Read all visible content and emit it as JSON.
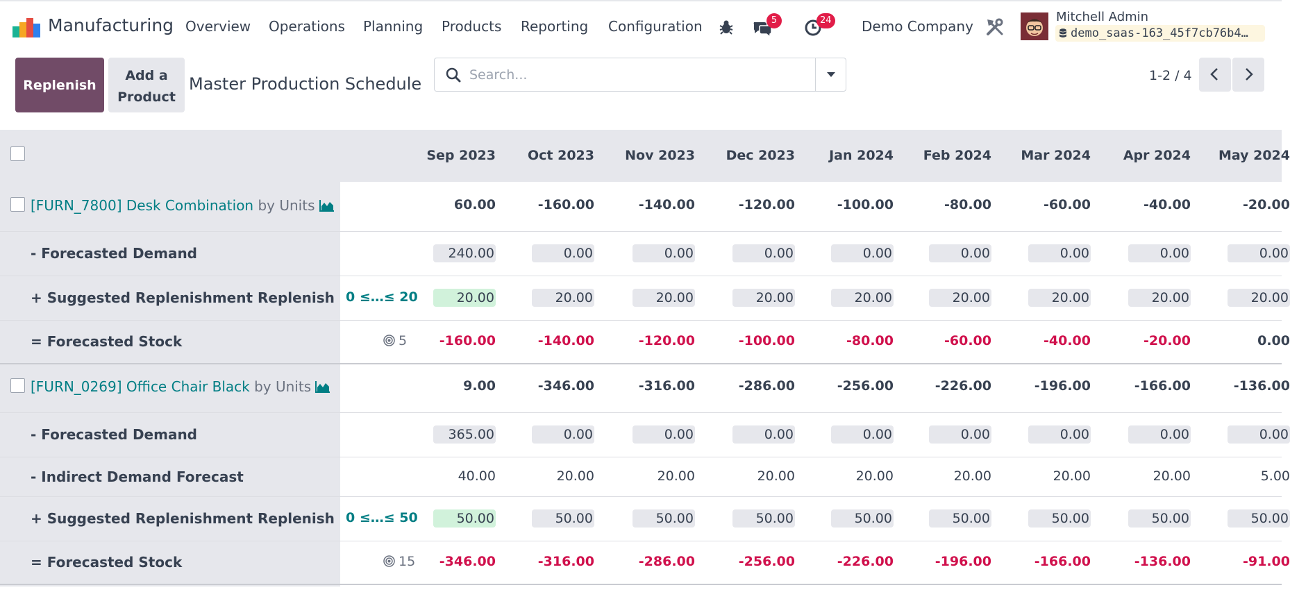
{
  "app": {
    "name": "Manufacturing"
  },
  "nav": {
    "items": [
      "Overview",
      "Operations",
      "Planning",
      "Products",
      "Reporting",
      "Configuration"
    ]
  },
  "systray": {
    "messages_count": "5",
    "activities_count": "24",
    "company": "Demo Company",
    "user_name": "Mitchell Admin",
    "database": "demo_saas-163_45f7cb76b4…"
  },
  "control": {
    "replenish_label": "Replenish",
    "add_product_label": "Add a\nProduct",
    "title": "Master Production Schedule",
    "search_placeholder": "Search...",
    "pager": "1-2 / 4"
  },
  "colors": {
    "primary": "#714b67",
    "link": "#017e84",
    "negative": "#d0104c",
    "cell_bg": "#e6e7ec",
    "highlight_bg": "#d1f2db"
  },
  "mps": {
    "months": [
      "Sep 2023",
      "Oct 2023",
      "Nov 2023",
      "Dec 2023",
      "Jan 2024",
      "Feb 2024",
      "Mar 2024",
      "Apr 2024",
      "May 2024"
    ],
    "products": [
      {
        "name": "[FURN_7800] Desk Combination",
        "uom": "by Units",
        "starting": [
          "60.00",
          "-160.00",
          "-140.00",
          "-120.00",
          "-100.00",
          "-80.00",
          "-60.00",
          "-40.00",
          "-20.00"
        ],
        "rows": [
          {
            "kind": "pill",
            "label": "- Forecasted Demand",
            "values": [
              "240.00",
              "0.00",
              "0.00",
              "0.00",
              "0.00",
              "0.00",
              "0.00",
              "0.00",
              "0.00"
            ]
          },
          {
            "kind": "replenish",
            "label": "+ Suggested Replenishment",
            "action": "Replenish",
            "range": "0 ≤…≤ 20",
            "values": [
              "20.00",
              "20.00",
              "20.00",
              "20.00",
              "20.00",
              "20.00",
              "20.00",
              "20.00",
              "20.00"
            ]
          },
          {
            "kind": "stock",
            "label": "= Forecasted Stock",
            "safety": "5",
            "values": [
              "-160.00",
              "-140.00",
              "-120.00",
              "-100.00",
              "-80.00",
              "-60.00",
              "-40.00",
              "-20.00",
              "0.00"
            ]
          }
        ]
      },
      {
        "name": "[FURN_0269] Office Chair Black",
        "uom": "by Units",
        "starting": [
          "9.00",
          "-346.00",
          "-316.00",
          "-286.00",
          "-256.00",
          "-226.00",
          "-196.00",
          "-166.00",
          "-136.00"
        ],
        "rows": [
          {
            "kind": "pill",
            "label": "- Forecasted Demand",
            "values": [
              "365.00",
              "0.00",
              "0.00",
              "0.00",
              "0.00",
              "0.00",
              "0.00",
              "0.00",
              "0.00"
            ]
          },
          {
            "kind": "plain",
            "label": "- Indirect Demand Forecast",
            "values": [
              "40.00",
              "20.00",
              "20.00",
              "20.00",
              "20.00",
              "20.00",
              "20.00",
              "20.00",
              "5.00"
            ]
          },
          {
            "kind": "replenish",
            "label": "+ Suggested Replenishment",
            "action": "Replenish",
            "range": "0 ≤…≤ 50",
            "values": [
              "50.00",
              "50.00",
              "50.00",
              "50.00",
              "50.00",
              "50.00",
              "50.00",
              "50.00",
              "50.00"
            ]
          },
          {
            "kind": "stock",
            "label": "= Forecasted Stock",
            "safety": "15",
            "values": [
              "-346.00",
              "-316.00",
              "-286.00",
              "-256.00",
              "-226.00",
              "-196.00",
              "-166.00",
              "-136.00",
              "-91.00"
            ]
          }
        ]
      }
    ]
  }
}
